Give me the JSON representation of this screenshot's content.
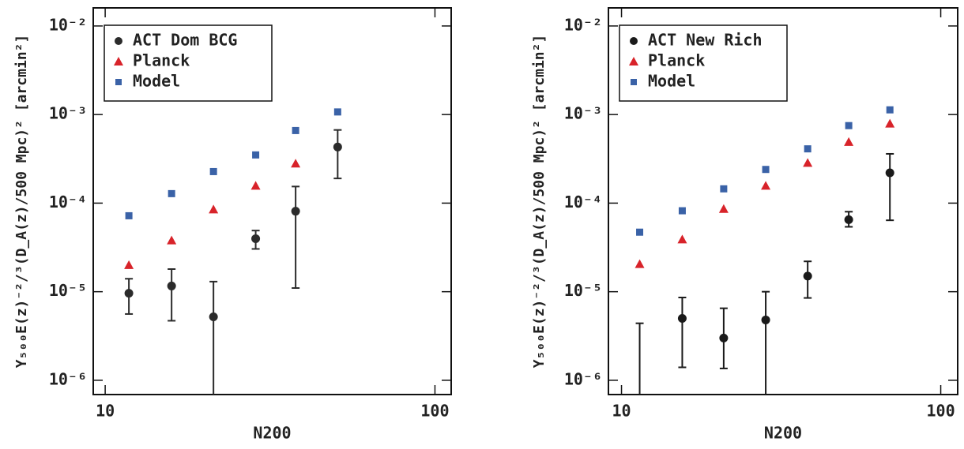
{
  "chart_data": [
    {
      "type": "scatter",
      "xlabel": "N200",
      "ylabel": "Y₅₀₀E(z)⁻²/³(D_A(z)/500 Mpc)² [arcmin²]",
      "xscale": "log",
      "yscale": "log",
      "xlim": [
        9.2,
        112
      ],
      "ylim": [
        6.9e-07,
        0.016
      ],
      "xticks": [
        10,
        100
      ],
      "yticks": [
        {
          "value": 1e-06,
          "label": "10⁻⁶"
        },
        {
          "value": 1e-05,
          "label": "10⁻⁵"
        },
        {
          "value": 0.0001,
          "label": "10⁻⁴"
        },
        {
          "value": 0.001,
          "label": "10⁻³"
        },
        {
          "value": 0.01,
          "label": "10⁻²"
        }
      ],
      "legend": "upper left",
      "series": [
        {
          "name": "ACT Dom BCG",
          "color": "#2b2b2b",
          "marker": "circle",
          "x": [
            11.8,
            15.9,
            21.3,
            28.6,
            37.8,
            50.7
          ],
          "values": [
            9.6e-06,
            1.16e-05,
            5.2e-06,
            3.97e-05,
            8.1e-05,
            0.00043
          ],
          "lower": [
            5.6e-06,
            4.7e-06,
            5e-07,
            3.04e-05,
            1.1e-05,
            0.00019
          ],
          "upper": [
            1.4e-05,
            1.8e-05,
            1.3e-05,
            4.9e-05,
            0.000154,
            0.00067
          ]
        },
        {
          "name": "Planck",
          "color": "#d8232a",
          "marker": "triangle",
          "x": [
            11.8,
            15.9,
            21.3,
            28.6,
            37.8
          ],
          "values": [
            2e-05,
            3.8e-05,
            8.5e-05,
            0.000157,
            0.00028
          ]
        },
        {
          "name": "Model",
          "color": "#3a62a7",
          "marker": "square",
          "x": [
            11.8,
            15.9,
            21.3,
            28.6,
            37.8,
            50.7
          ],
          "values": [
            7.2e-05,
            0.000128,
            0.000227,
            0.00035,
            0.00066,
            0.00107
          ]
        }
      ]
    },
    {
      "type": "scatter",
      "xlabel": "N200",
      "ylabel": "Y₅₀₀E(z)⁻²/³(D_A(z)/500 Mpc)² [arcmin²]",
      "xscale": "log",
      "yscale": "log",
      "xlim": [
        9.1,
        113
      ],
      "ylim": [
        6.9e-07,
        0.016
      ],
      "xticks": [
        10,
        100
      ],
      "yticks": [
        {
          "value": 1e-06,
          "label": "10⁻⁶"
        },
        {
          "value": 1e-05,
          "label": "10⁻⁵"
        },
        {
          "value": 0.0001,
          "label": "10⁻⁴"
        },
        {
          "value": 0.001,
          "label": "10⁻³"
        },
        {
          "value": 0.01,
          "label": "10⁻²"
        }
      ],
      "legend": "upper left",
      "series": [
        {
          "name": "ACT New Rich",
          "color": "#1a1a1a",
          "marker": "circle",
          "x": [
            11.4,
            15.5,
            20.9,
            28.3,
            38.3,
            51.5,
            69.3
          ],
          "values": [
            null,
            5e-06,
            3e-06,
            4.8e-06,
            1.5e-05,
            6.5e-05,
            0.00022
          ],
          "lower": [
            5e-07,
            1.4e-06,
            1.36e-06,
            5e-07,
            8.5e-06,
            5.4e-05,
            6.4e-05
          ],
          "upper": [
            4.4e-06,
            8.6e-06,
            6.5e-06,
            1e-05,
            2.2e-05,
            8e-05,
            0.00036
          ]
        },
        {
          "name": "Planck",
          "color": "#d8232a",
          "marker": "triangle",
          "x": [
            11.4,
            15.5,
            20.9,
            28.3,
            38.3,
            51.5,
            69.3
          ],
          "values": [
            2.05e-05,
            3.9e-05,
            8.6e-05,
            0.000157,
            0.000285,
            0.00049,
            0.00079
          ]
        },
        {
          "name": "Model",
          "color": "#3a62a7",
          "marker": "square",
          "x": [
            11.4,
            15.5,
            20.9,
            28.3,
            38.3,
            51.5,
            69.3
          ],
          "values": [
            4.7e-05,
            8.2e-05,
            0.000145,
            0.00024,
            0.00041,
            0.00075,
            0.00113
          ]
        }
      ]
    }
  ]
}
